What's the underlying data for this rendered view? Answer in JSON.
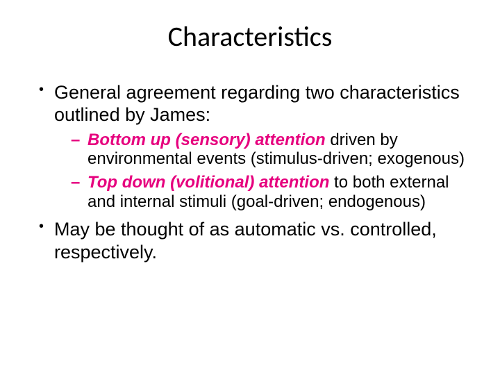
{
  "slide": {
    "title": "Characteristics",
    "title_fontsize": 40,
    "title_font": "Calibri",
    "body_font": "Verdana",
    "body_fontsize_l1": 27,
    "body_fontsize_l2": 24,
    "background_color": "#ffffff",
    "text_color": "#000000",
    "accent_color": "#e6007e",
    "bullets": [
      {
        "text": "General agreement regarding two characteristics outlined by James:",
        "sub": [
          {
            "emph": "Bottom up (sensory) attention",
            "rest": " driven by environmental events (stimulus-driven; exogenous)"
          },
          {
            "emph": "Top down (volitional) attention",
            "rest": " to both external and internal stimuli (goal-driven; endogenous)"
          }
        ]
      },
      {
        "text": "May be thought of as automatic vs. controlled, respectively.",
        "sub": []
      }
    ]
  }
}
